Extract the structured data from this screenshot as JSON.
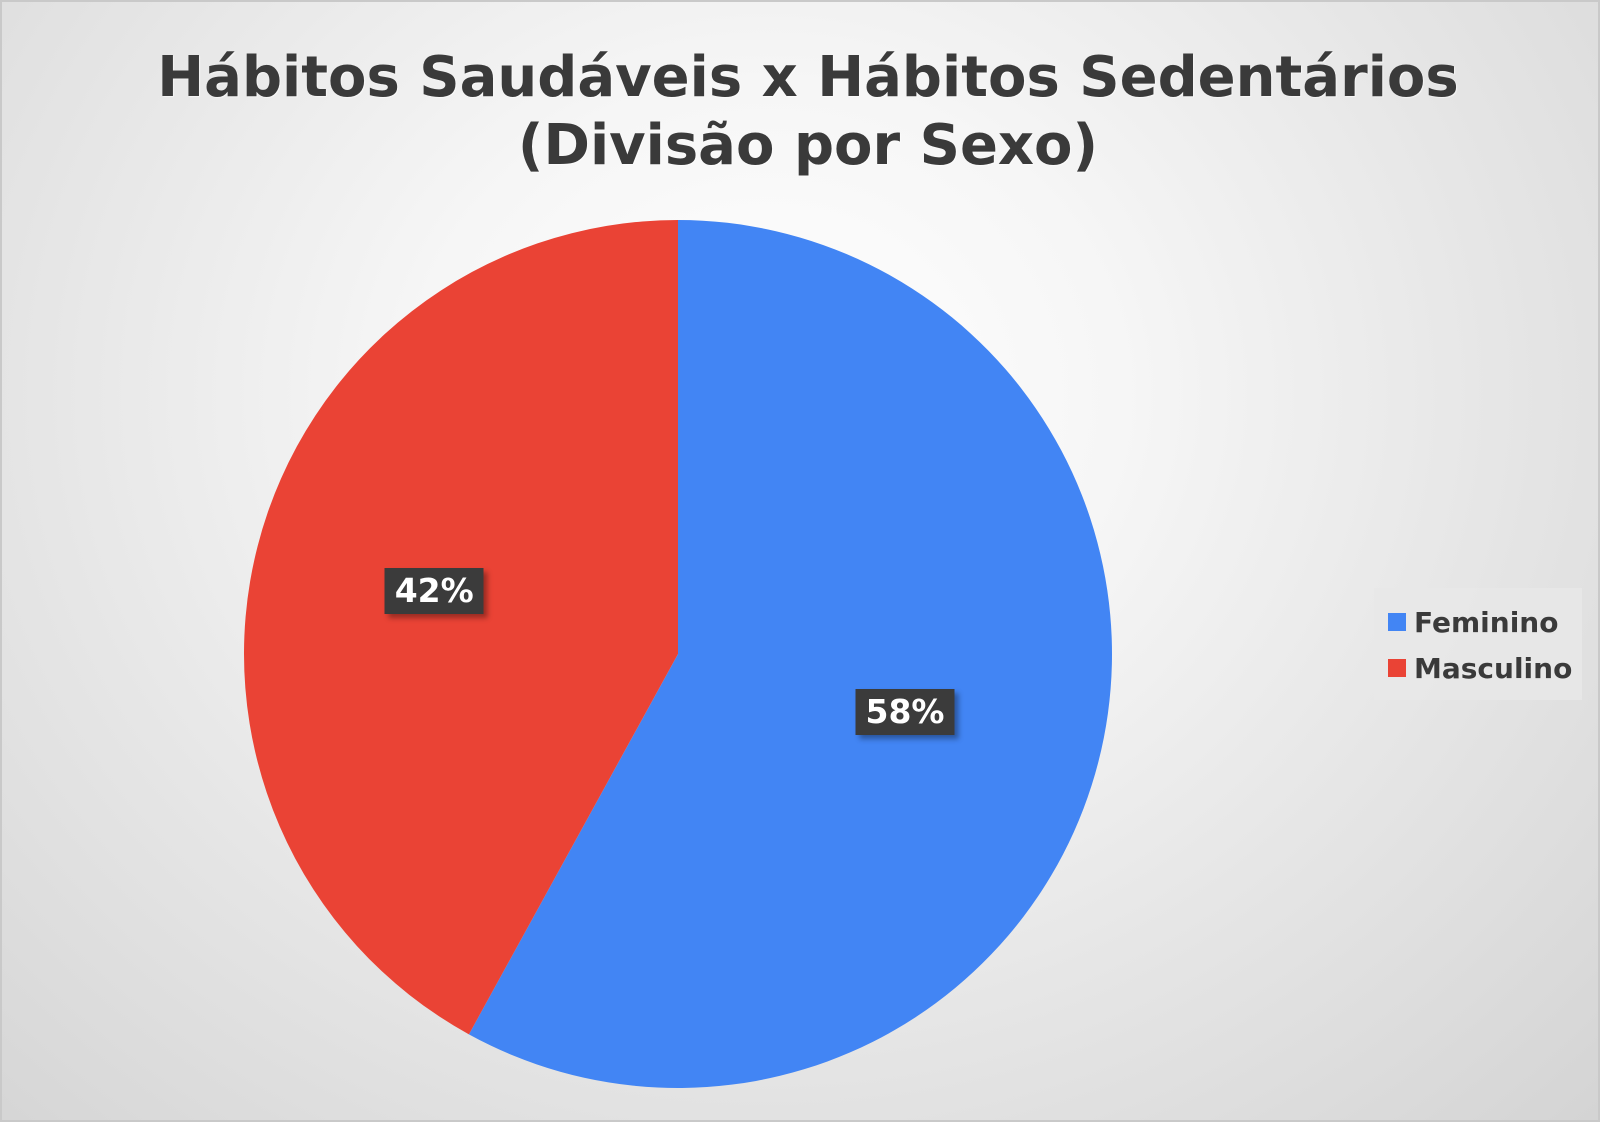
{
  "chart_data": {
    "type": "pie",
    "title": "Hábitos Saudáveis x Hábitos Sedentários",
    "subtitle": "(Divisão por Sexo)",
    "categories": [
      "Feminino",
      "Masculino"
    ],
    "values": [
      58,
      42
    ],
    "data_labels": [
      "58%",
      "42%"
    ],
    "colors": [
      "#4285f4",
      "#ea4335"
    ],
    "start_angle_deg": 0,
    "direction": "clockwise",
    "legend_position": "right"
  }
}
